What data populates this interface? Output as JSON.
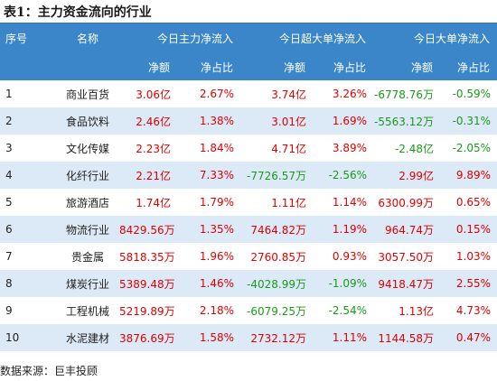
{
  "title": "表1：主力资金流向的行业",
  "header": {
    "index_label": "序号",
    "name_label": "名称",
    "group_main": "今日主力净流入",
    "group_super": "今日超大单净流入",
    "group_large": "今日大单净流入",
    "amount_label": "净额",
    "ratio_label": "净占比"
  },
  "rows": [
    {
      "index": "1",
      "name": "商业百货",
      "main_amt": "3.06亿",
      "main_pct": "2.67%",
      "super_amt": "3.74亿",
      "super_pct": "3.26%",
      "large_amt": "-6778.76万",
      "large_pct": "-0.59%"
    },
    {
      "index": "2",
      "name": "食品饮料",
      "main_amt": "2.46亿",
      "main_pct": "1.38%",
      "super_amt": "3.01亿",
      "super_pct": "1.69%",
      "large_amt": "-5563.12万",
      "large_pct": "-0.31%"
    },
    {
      "index": "3",
      "name": "文化传媒",
      "main_amt": "2.23亿",
      "main_pct": "1.84%",
      "super_amt": "4.71亿",
      "super_pct": "3.89%",
      "large_amt": "-2.48亿",
      "large_pct": "-2.05%"
    },
    {
      "index": "4",
      "name": "化纤行业",
      "main_amt": "2.21亿",
      "main_pct": "7.33%",
      "super_amt": "-7726.57万",
      "super_pct": "-2.56%",
      "large_amt": "2.99亿",
      "large_pct": "9.89%"
    },
    {
      "index": "5",
      "name": "旅游酒店",
      "main_amt": "1.74亿",
      "main_pct": "1.79%",
      "super_amt": "1.11亿",
      "super_pct": "1.14%",
      "large_amt": "6300.99万",
      "large_pct": "0.65%"
    },
    {
      "index": "6",
      "name": "物流行业",
      "main_amt": "8429.56万",
      "main_pct": "1.35%",
      "super_amt": "7464.82万",
      "super_pct": "1.19%",
      "large_amt": "964.74万",
      "large_pct": "0.15%"
    },
    {
      "index": "7",
      "name": "贵金属",
      "main_amt": "5818.35万",
      "main_pct": "1.96%",
      "super_amt": "2760.85万",
      "super_pct": "0.93%",
      "large_amt": "3057.50万",
      "large_pct": "1.03%"
    },
    {
      "index": "8",
      "name": "煤炭行业",
      "main_amt": "5389.48万",
      "main_pct": "1.46%",
      "super_amt": "-4028.99万",
      "super_pct": "-1.09%",
      "large_amt": "9418.47万",
      "large_pct": "2.55%"
    },
    {
      "index": "9",
      "name": "工程机械",
      "main_amt": "5219.89万",
      "main_pct": "2.18%",
      "super_amt": "-6079.25万",
      "super_pct": "-2.54%",
      "large_amt": "1.13亿",
      "large_pct": "4.73%"
    },
    {
      "index": "10",
      "name": "水泥建材",
      "main_amt": "3876.69万",
      "main_pct": "1.58%",
      "super_amt": "2732.12万",
      "super_pct": "1.11%",
      "large_amt": "1144.58万",
      "large_pct": "0.47%"
    }
  ],
  "footer": "数据来源：巨丰投顾",
  "colors": {
    "header_bg": "#3b86c8",
    "row_alt_bg": "#dce9f6",
    "positive": "#e00000",
    "negative": "#1a9a1a"
  }
}
